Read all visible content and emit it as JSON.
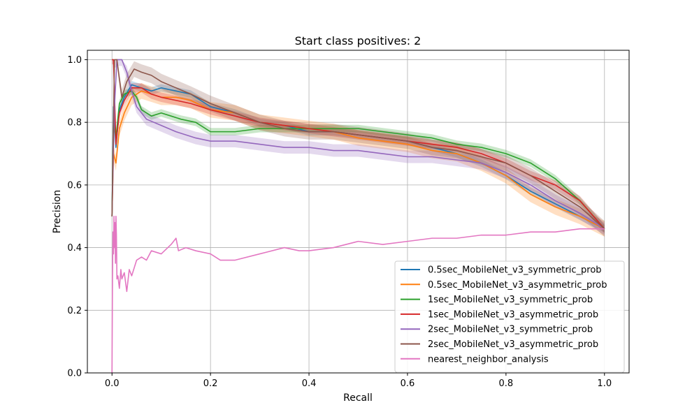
{
  "chart_data": {
    "type": "line",
    "title": "Start class positives: 2",
    "xlabel": "Recall",
    "ylabel": "Precision",
    "xlim": [
      -0.05,
      1.05
    ],
    "ylim": [
      0.0,
      1.03
    ],
    "xticks": [
      0.0,
      0.2,
      0.4,
      0.6,
      0.8,
      1.0
    ],
    "xtick_labels": [
      "0.0",
      "0.2",
      "0.4",
      "0.6",
      "0.8",
      "1.0"
    ],
    "yticks": [
      0.0,
      0.2,
      0.4,
      0.6,
      0.8,
      1.0
    ],
    "ytick_labels": [
      "0.0",
      "0.2",
      "0.4",
      "0.6",
      "0.8",
      "1.0"
    ],
    "grid": true,
    "legend_position": "lower-right",
    "series": [
      {
        "name": "0.5sec_MobileNet_v3_symmetric_prob",
        "color": "#1f77b4",
        "band": 0.012,
        "x": [
          0.0,
          0.003,
          0.008,
          0.015,
          0.025,
          0.04,
          0.06,
          0.08,
          0.1,
          0.13,
          0.16,
          0.2,
          0.25,
          0.3,
          0.35,
          0.4,
          0.45,
          0.5,
          0.55,
          0.6,
          0.65,
          0.7,
          0.75,
          0.8,
          0.85,
          0.9,
          0.95,
          1.0
        ],
        "y": [
          0.5,
          0.85,
          0.72,
          0.84,
          0.88,
          0.92,
          0.91,
          0.9,
          0.91,
          0.9,
          0.89,
          0.85,
          0.83,
          0.8,
          0.79,
          0.77,
          0.77,
          0.76,
          0.75,
          0.74,
          0.72,
          0.7,
          0.67,
          0.63,
          0.58,
          0.54,
          0.5,
          0.46
        ]
      },
      {
        "name": "0.5sec_MobileNet_v3_asymmetric_prob",
        "color": "#ff7f0e",
        "band": 0.025,
        "x": [
          0.0,
          0.003,
          0.008,
          0.015,
          0.025,
          0.04,
          0.06,
          0.08,
          0.1,
          0.13,
          0.16,
          0.2,
          0.25,
          0.3,
          0.35,
          0.4,
          0.45,
          0.5,
          0.55,
          0.6,
          0.65,
          0.7,
          0.75,
          0.8,
          0.85,
          0.9,
          0.95,
          1.0
        ],
        "y": [
          0.5,
          0.7,
          0.67,
          0.78,
          0.83,
          0.88,
          0.9,
          0.89,
          0.88,
          0.88,
          0.87,
          0.84,
          0.83,
          0.8,
          0.79,
          0.78,
          0.77,
          0.75,
          0.74,
          0.73,
          0.71,
          0.7,
          0.67,
          0.63,
          0.57,
          0.53,
          0.5,
          0.46
        ]
      },
      {
        "name": "1sec_MobileNet_v3_symmetric_prob",
        "color": "#2ca02c",
        "band": 0.012,
        "x": [
          0.0,
          0.003,
          0.008,
          0.015,
          0.025,
          0.04,
          0.05,
          0.06,
          0.08,
          0.1,
          0.12,
          0.14,
          0.17,
          0.2,
          0.25,
          0.3,
          0.35,
          0.4,
          0.45,
          0.5,
          0.55,
          0.6,
          0.65,
          0.7,
          0.75,
          0.8,
          0.85,
          0.9,
          0.95,
          1.0
        ],
        "y": [
          0.5,
          0.8,
          0.75,
          0.86,
          0.89,
          0.9,
          0.88,
          0.84,
          0.82,
          0.83,
          0.82,
          0.81,
          0.8,
          0.77,
          0.77,
          0.78,
          0.78,
          0.78,
          0.78,
          0.78,
          0.77,
          0.76,
          0.75,
          0.73,
          0.72,
          0.7,
          0.67,
          0.62,
          0.55,
          0.46
        ]
      },
      {
        "name": "1sec_MobileNet_v3_asymmetric_prob",
        "color": "#d62728",
        "band": 0.015,
        "x": [
          0.0,
          0.003,
          0.008,
          0.015,
          0.025,
          0.04,
          0.06,
          0.08,
          0.1,
          0.13,
          0.16,
          0.2,
          0.25,
          0.3,
          0.35,
          0.4,
          0.45,
          0.5,
          0.55,
          0.6,
          0.65,
          0.7,
          0.75,
          0.8,
          0.85,
          0.9,
          0.95,
          1.0
        ],
        "y": [
          1.0,
          1.0,
          0.73,
          0.83,
          0.87,
          0.91,
          0.91,
          0.89,
          0.88,
          0.87,
          0.86,
          0.84,
          0.82,
          0.8,
          0.79,
          0.78,
          0.77,
          0.76,
          0.75,
          0.74,
          0.73,
          0.72,
          0.7,
          0.67,
          0.63,
          0.6,
          0.55,
          0.46
        ]
      },
      {
        "name": "2sec_MobileNet_v3_symmetric_prob",
        "color": "#9467bd",
        "band": 0.02,
        "x": [
          0.0,
          0.005,
          0.01,
          0.02,
          0.03,
          0.04,
          0.05,
          0.06,
          0.07,
          0.1,
          0.13,
          0.17,
          0.2,
          0.25,
          0.3,
          0.35,
          0.4,
          0.45,
          0.5,
          0.55,
          0.6,
          0.65,
          0.7,
          0.75,
          0.8,
          0.85,
          0.9,
          0.95,
          1.0
        ],
        "y": [
          0.5,
          0.85,
          1.0,
          1.0,
          0.96,
          0.9,
          0.85,
          0.83,
          0.81,
          0.79,
          0.77,
          0.75,
          0.74,
          0.74,
          0.73,
          0.72,
          0.72,
          0.71,
          0.71,
          0.7,
          0.69,
          0.69,
          0.68,
          0.67,
          0.64,
          0.6,
          0.55,
          0.51,
          0.46
        ]
      },
      {
        "name": "2sec_MobileNet_v3_asymmetric_prob",
        "color": "#8c564b",
        "band": 0.025,
        "x": [
          0.0,
          0.005,
          0.01,
          0.02,
          0.03,
          0.045,
          0.06,
          0.08,
          0.1,
          0.13,
          0.16,
          0.2,
          0.25,
          0.3,
          0.35,
          0.4,
          0.45,
          0.5,
          0.55,
          0.6,
          0.65,
          0.7,
          0.75,
          0.8,
          0.85,
          0.9,
          0.95,
          1.0
        ],
        "y": [
          0.5,
          1.0,
          1.0,
          0.88,
          0.93,
          0.97,
          0.96,
          0.95,
          0.93,
          0.91,
          0.89,
          0.86,
          0.83,
          0.8,
          0.78,
          0.77,
          0.77,
          0.76,
          0.75,
          0.74,
          0.72,
          0.71,
          0.69,
          0.67,
          0.63,
          0.58,
          0.53,
          0.46
        ]
      },
      {
        "name": "nearest_neighbor_analysis",
        "color": "#e377c2",
        "band": 0,
        "x": [
          0.0,
          0.001,
          0.002,
          0.003,
          0.004,
          0.005,
          0.006,
          0.007,
          0.008,
          0.009,
          0.01,
          0.012,
          0.015,
          0.018,
          0.02,
          0.025,
          0.03,
          0.035,
          0.04,
          0.05,
          0.06,
          0.07,
          0.08,
          0.1,
          0.12,
          0.13,
          0.135,
          0.15,
          0.17,
          0.2,
          0.22,
          0.25,
          0.3,
          0.35,
          0.38,
          0.4,
          0.45,
          0.5,
          0.55,
          0.6,
          0.65,
          0.7,
          0.75,
          0.8,
          0.85,
          0.9,
          0.95,
          1.0
        ],
        "y": [
          0.0,
          0.3,
          0.45,
          0.38,
          0.5,
          0.4,
          0.48,
          0.35,
          0.5,
          0.44,
          0.3,
          0.31,
          0.27,
          0.33,
          0.3,
          0.32,
          0.26,
          0.33,
          0.31,
          0.36,
          0.37,
          0.36,
          0.39,
          0.38,
          0.41,
          0.43,
          0.39,
          0.4,
          0.39,
          0.38,
          0.36,
          0.36,
          0.38,
          0.4,
          0.39,
          0.39,
          0.4,
          0.42,
          0.41,
          0.42,
          0.43,
          0.43,
          0.44,
          0.44,
          0.45,
          0.45,
          0.46,
          0.46
        ]
      }
    ]
  }
}
